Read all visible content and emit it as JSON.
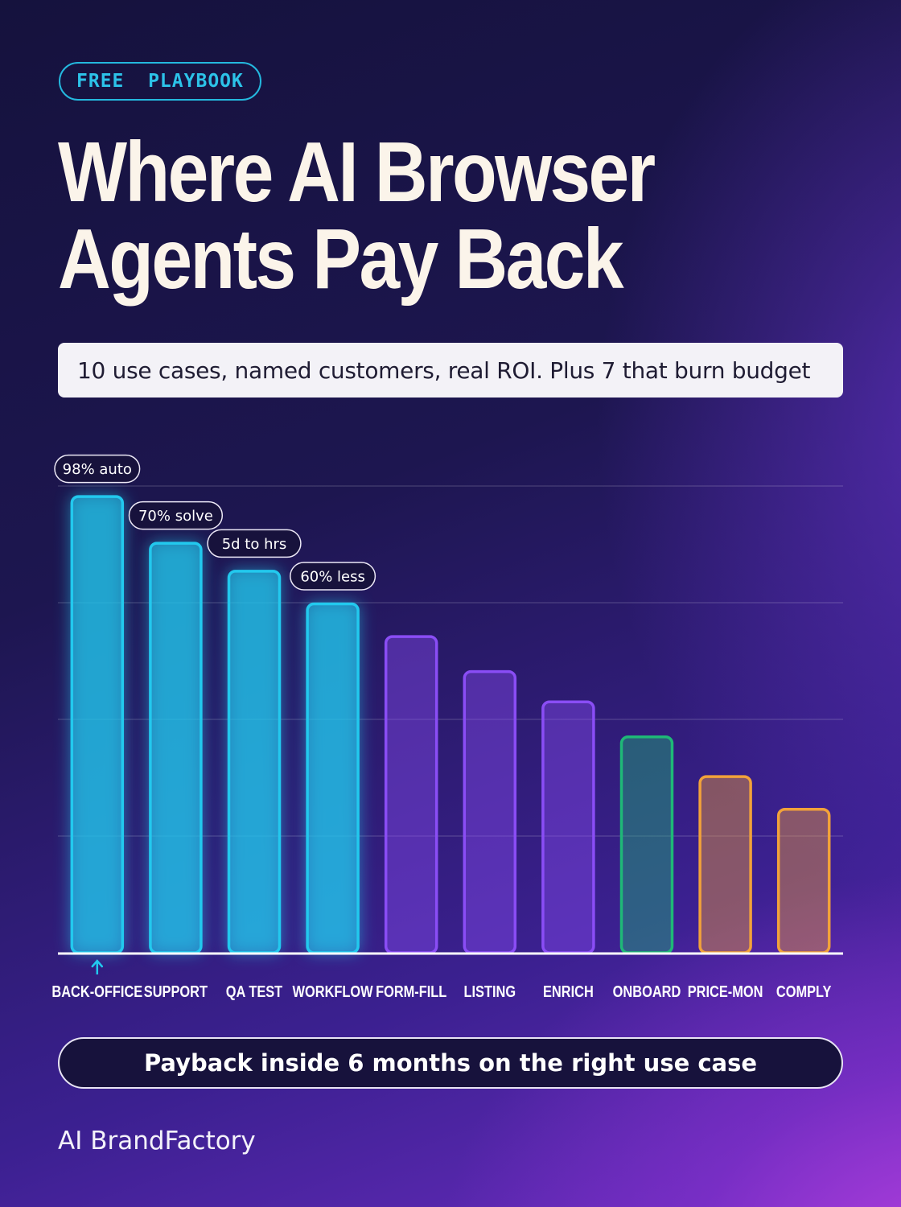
{
  "badge": "FREE  PLAYBOOK",
  "title": "Where AI Browser Agents Pay Back",
  "subtitle": "10 use cases, named customers, real ROI. Plus 7 that burn budget",
  "chart_data": {
    "type": "bar",
    "categories": [
      "BACK-OFFICE",
      "SUPPORT",
      "QA TEST",
      "WORKFLOW",
      "FORM-FILL",
      "LISTING",
      "ENRICH",
      "ONBOARD",
      "PRICE-MON",
      "COMPLY"
    ],
    "values": [
      98,
      88,
      82,
      75,
      68,
      60.5,
      54,
      46.5,
      38,
      31
    ],
    "bar_labels": [
      "98% auto",
      "70% solve",
      "5d to hrs",
      "60% less",
      "",
      "",
      "",
      "",
      "",
      ""
    ],
    "colors": [
      "#22c9ee",
      "#22c9ee",
      "#22c9ee",
      "#22c9ee",
      "#8a4df5",
      "#8a4df5",
      "#8a4df5",
      "#1fb877",
      "#f2a23a",
      "#f2a23a"
    ],
    "highlight_marker": "up-arrow-icon",
    "ylim": [
      0,
      100
    ],
    "grid": true,
    "title": "",
    "xlabel": "",
    "ylabel": ""
  },
  "cta": "Payback inside 6 months on the right use case",
  "brand": "AI BrandFactory"
}
